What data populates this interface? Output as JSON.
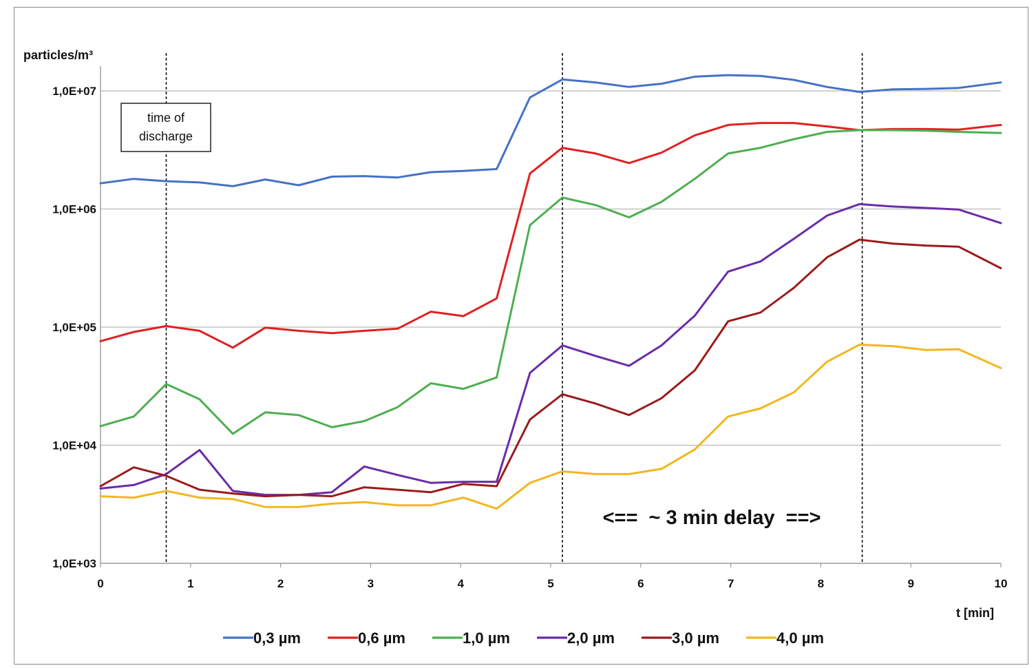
{
  "chart_data": {
    "type": "line",
    "ylabel": "particles/m³",
    "xlabel": "t [min]",
    "y_scale": "log",
    "ylim": [
      1000,
      10000000
    ],
    "y_ticks": [
      1000,
      10000,
      100000,
      1000000,
      10000000
    ],
    "y_tick_labels": [
      "1,0E+03",
      "1,0E+04",
      "1,0E+05",
      "1,0E+06",
      "1,0E+07"
    ],
    "xlim": [
      0,
      10
    ],
    "x_ticks": [
      0,
      1,
      2,
      3,
      4,
      5,
      6,
      7,
      8,
      9,
      10
    ],
    "x_tick_labels": [
      "0",
      "1",
      "2",
      "3",
      "4",
      "5",
      "6",
      "7",
      "8",
      "9",
      "10"
    ],
    "grid": "horizontal",
    "legend_position": "bottom",
    "x": [
      0,
      0.37,
      0.73,
      1.1,
      1.47,
      1.83,
      2.2,
      2.57,
      2.93,
      3.3,
      3.67,
      4.03,
      4.4,
      4.77,
      5.13,
      5.5,
      5.87,
      6.23,
      6.6,
      6.97,
      7.33,
      7.7,
      8.07,
      8.43,
      8.8,
      9.17,
      9.53,
      10
    ],
    "series": [
      {
        "name": "0,3 µm",
        "color": "#4472C4",
        "values": [
          1650000,
          1800000,
          1720000,
          1680000,
          1560000,
          1780000,
          1590000,
          1880000,
          1900000,
          1850000,
          2050000,
          2100000,
          2180000,
          8800000,
          12500000,
          11800000,
          10800000,
          11500000,
          13200000,
          13600000,
          13400000,
          12400000,
          10800000,
          9800000,
          10300000,
          10400000,
          10600000,
          11800000
        ]
      },
      {
        "name": "0,6 µm",
        "color": "#E02020",
        "values": [
          76000,
          91000,
          102000,
          93000,
          67000,
          99000,
          93000,
          89000,
          93000,
          97000,
          135000,
          124000,
          175000,
          2000000,
          3300000,
          2950000,
          2450000,
          3000000,
          4200000,
          5150000,
          5350000,
          5350000,
          5000000,
          4650000,
          4750000,
          4750000,
          4700000,
          5150000
        ]
      },
      {
        "name": "1,0 µm",
        "color": "#4CAF50",
        "values": [
          14500,
          17500,
          33000,
          24500,
          12500,
          19000,
          18000,
          14200,
          16000,
          21000,
          33500,
          30000,
          37500,
          730000,
          1250000,
          1080000,
          850000,
          1150000,
          1800000,
          2950000,
          3300000,
          3900000,
          4500000,
          4650000,
          4650000,
          4600000,
          4500000,
          4400000
        ]
      },
      {
        "name": "2,0 µm",
        "color": "#6A2BA8",
        "values": [
          4300,
          4600,
          5700,
          9100,
          4100,
          3800,
          3800,
          4000,
          6600,
          5600,
          4800,
          4900,
          4900,
          41000,
          70000,
          57000,
          47000,
          70000,
          125000,
          295000,
          360000,
          560000,
          880000,
          1100000,
          1050000,
          1020000,
          990000,
          760000
        ]
      },
      {
        "name": "3,0 µm",
        "color": "#9B1B1B",
        "values": [
          4500,
          6500,
          5500,
          4200,
          3900,
          3700,
          3800,
          3700,
          4400,
          4200,
          4000,
          4700,
          4500,
          16500,
          27000,
          22500,
          18000,
          25000,
          43000,
          112000,
          133000,
          215000,
          390000,
          550000,
          510000,
          490000,
          480000,
          315000
        ]
      },
      {
        "name": "4,0 µm",
        "color": "#F2B71F",
        "values": [
          3700,
          3600,
          4100,
          3600,
          3500,
          3000,
          3000,
          3200,
          3300,
          3100,
          3100,
          3600,
          2900,
          4800,
          6000,
          5700,
          5700,
          6300,
          9200,
          17500,
          20500,
          28000,
          51000,
          71000,
          69000,
          64000,
          65000,
          45000
        ]
      }
    ],
    "reference_lines_x": [
      0.73,
      5.13,
      8.46
    ],
    "annotations": {
      "discharge_line1": "time of",
      "discharge_line2": "discharge",
      "delay": "<==  ~ 3 min delay  ==>"
    }
  }
}
